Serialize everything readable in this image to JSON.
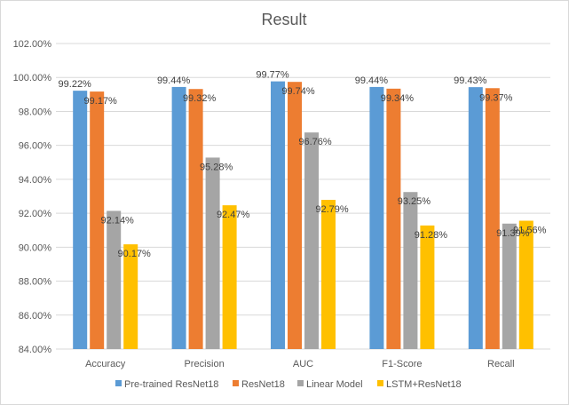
{
  "chart_data": {
    "type": "bar",
    "title": "Result",
    "xlabel": "",
    "ylabel": "",
    "categories": [
      "Accuracy",
      "Precision",
      "AUC",
      "F1-Score",
      "Recall"
    ],
    "ylim": [
      84,
      102
    ],
    "ytick_step": 2,
    "ytick_labels": [
      "84.00%",
      "86.00%",
      "88.00%",
      "90.00%",
      "92.00%",
      "94.00%",
      "96.00%",
      "98.00%",
      "100.00%",
      "102.00%"
    ],
    "grid": true,
    "legend_position": "bottom",
    "series": [
      {
        "name": "Pre-trained ResNet18",
        "color": "#5B9BD5",
        "values": [
          99.22,
          99.44,
          99.77,
          99.44,
          99.43
        ],
        "labels": [
          "99.22%",
          "99.44%",
          "99.77%",
          "99.44%",
          "99.43%"
        ]
      },
      {
        "name": "ResNet18",
        "color": "#ED7D31",
        "values": [
          99.17,
          99.32,
          99.74,
          99.34,
          99.37
        ],
        "labels": [
          "99.17%",
          "99.32%",
          "99.74%",
          "99.34%",
          "99.37%"
        ]
      },
      {
        "name": "Linear Model",
        "color": "#A5A5A5",
        "values": [
          92.14,
          95.28,
          96.76,
          93.25,
          91.39
        ],
        "labels": [
          "92.14%",
          "95.28%",
          "96.76%",
          "93.25%",
          "91.39%"
        ]
      },
      {
        "name": "LSTM+ResNet18",
        "color": "#FFC000",
        "values": [
          90.17,
          92.47,
          92.79,
          91.28,
          91.56
        ],
        "labels": [
          "90.17%",
          "92.47%",
          "92.79%",
          "91.28%",
          "91.56%"
        ]
      }
    ]
  }
}
